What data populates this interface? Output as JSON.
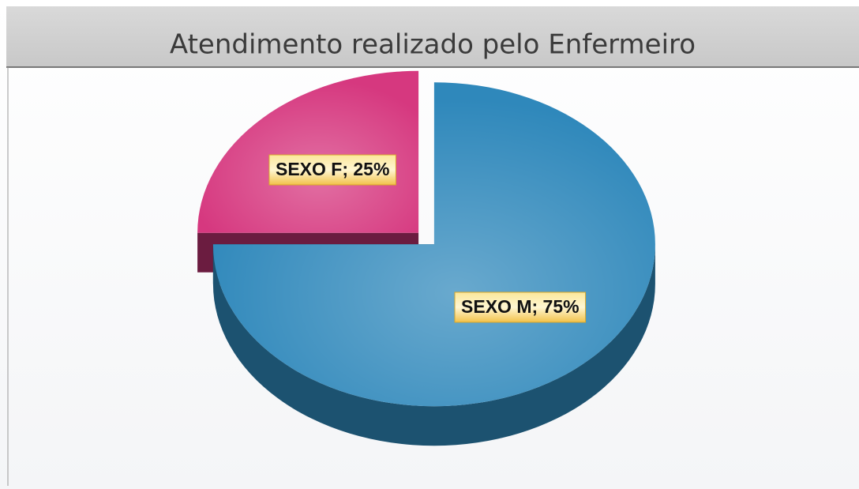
{
  "chart_data": {
    "type": "pie",
    "title": "Atendimento realizado pelo Enfermeiro",
    "categories": [
      "SEXO F",
      "SEXO M"
    ],
    "values": [
      25,
      75
    ],
    "value_labels": [
      "SEXO F; 25%",
      "SEXO M; 75%"
    ],
    "colors": [
      "#d6387f",
      "#2f88bb"
    ]
  }
}
